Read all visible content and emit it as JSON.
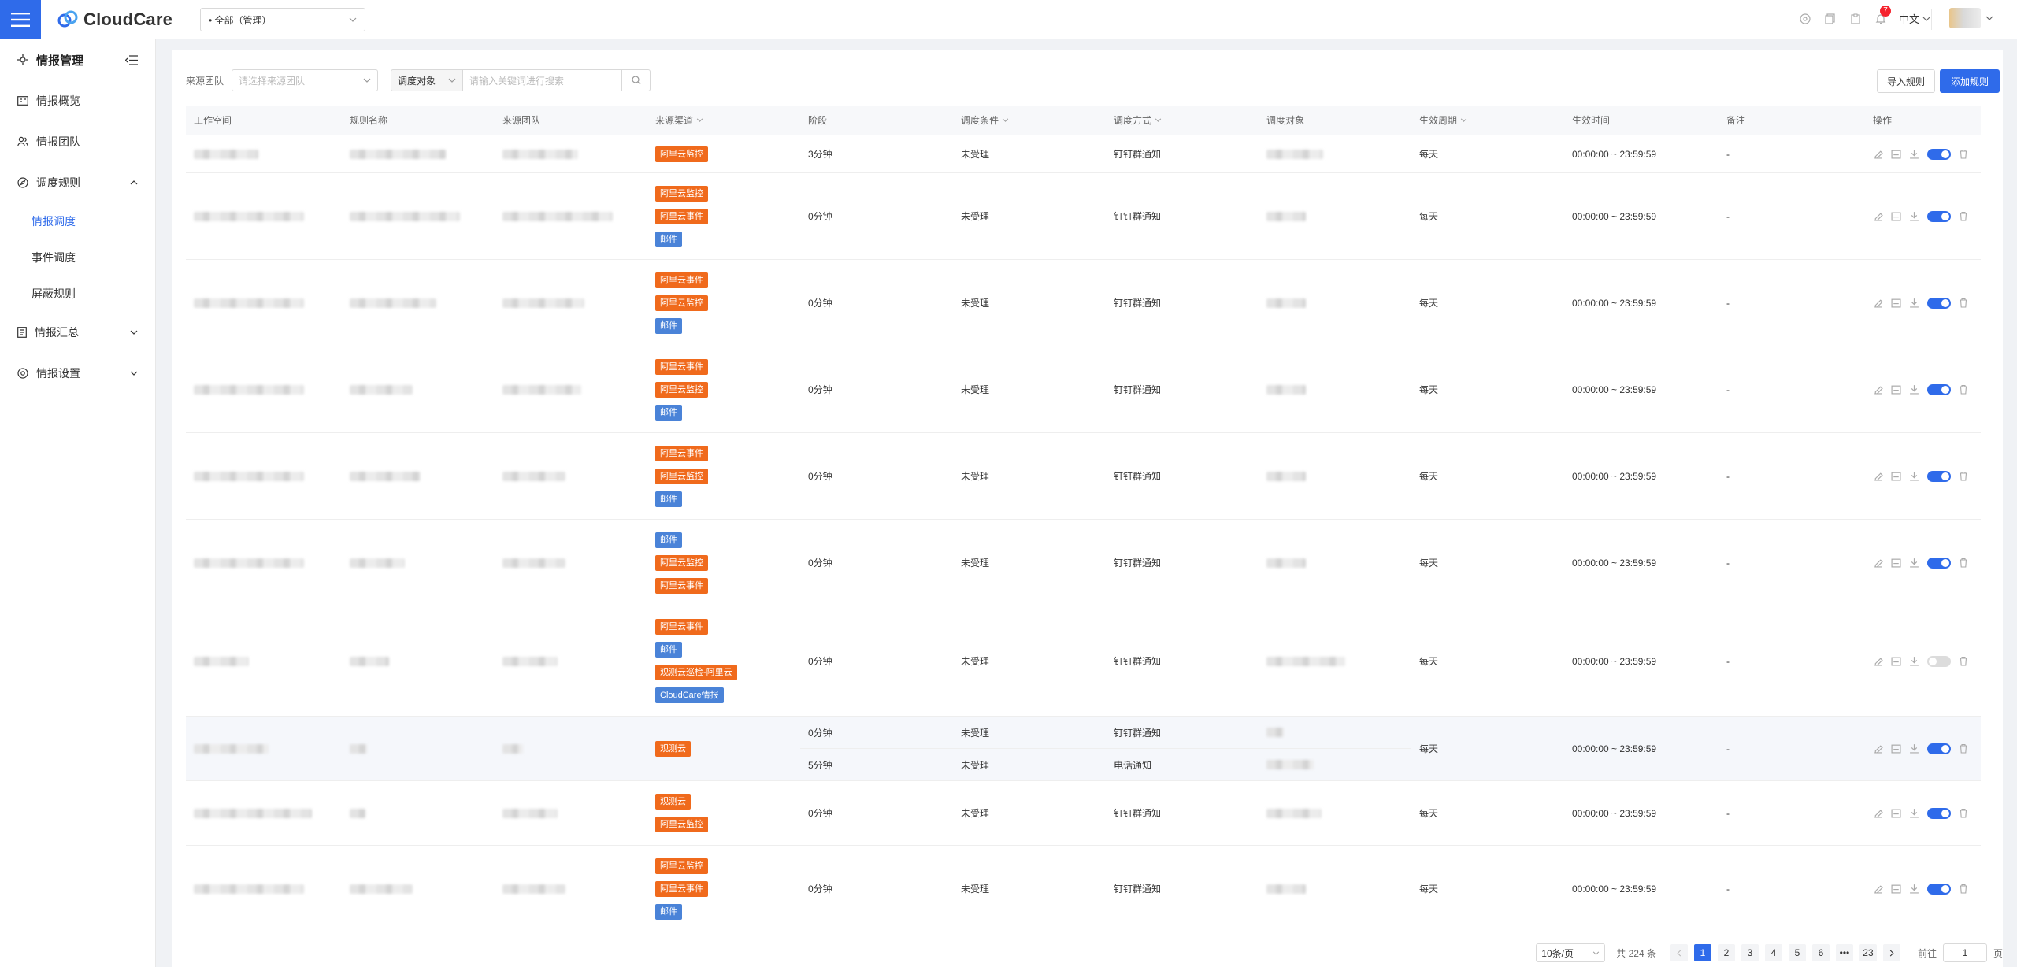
{
  "header": {
    "logo_text": "CloudCare",
    "workspace_select": "• 全部（管理）",
    "notification_count": "7",
    "language": "中文"
  },
  "sidebar": {
    "title": "情报管理",
    "items": [
      {
        "label": "情报概览",
        "icon": "overview-icon"
      },
      {
        "label": "情报团队",
        "icon": "team-icon"
      },
      {
        "label": "调度规则",
        "icon": "compass-icon"
      }
    ],
    "subitems": [
      "情报调度",
      "事件调度",
      "屏蔽规则"
    ],
    "items_after": [
      {
        "label": "情报汇总",
        "icon": "summary-icon"
      },
      {
        "label": "情报设置",
        "icon": "settings-icon"
      }
    ]
  },
  "filters": {
    "team_label": "来源团队",
    "team_placeholder": "请选择来源团队",
    "search_type": "调度对象",
    "search_placeholder": "请输入关键词进行搜索"
  },
  "actions": {
    "import": "导入规则",
    "add": "添加规则"
  },
  "table": {
    "columns": [
      "工作空间",
      "规则名称",
      "来源团队",
      "来源渠道",
      "阶段",
      "调度条件",
      "调度方式",
      "调度对象",
      "生效周期",
      "生效时间",
      "备注",
      "操作"
    ],
    "rows": [
      {
        "tags": [
          [
            "阿里云监控",
            "orange"
          ]
        ],
        "stage": [
          "3分钟"
        ],
        "cond": [
          "未受理"
        ],
        "method": [
          "钉钉群通知"
        ],
        "cycle": "每天",
        "time": "00:00:00 ~ 23:59:59",
        "note": "-",
        "enabled": true
      },
      {
        "tags": [
          [
            "阿里云监控",
            "orange"
          ],
          [
            "阿里云事件",
            "orange"
          ],
          [
            "邮件",
            "blue"
          ]
        ],
        "stage": [
          "0分钟"
        ],
        "cond": [
          "未受理"
        ],
        "method": [
          "钉钉群通知"
        ],
        "cycle": "每天",
        "time": "00:00:00 ~ 23:59:59",
        "note": "-",
        "enabled": true
      },
      {
        "tags": [
          [
            "阿里云事件",
            "orange"
          ],
          [
            "阿里云监控",
            "orange"
          ],
          [
            "邮件",
            "blue"
          ]
        ],
        "stage": [
          "0分钟"
        ],
        "cond": [
          "未受理"
        ],
        "method": [
          "钉钉群通知"
        ],
        "cycle": "每天",
        "time": "00:00:00 ~ 23:59:59",
        "note": "-",
        "enabled": true
      },
      {
        "tags": [
          [
            "阿里云事件",
            "orange"
          ],
          [
            "阿里云监控",
            "orange"
          ],
          [
            "邮件",
            "blue"
          ]
        ],
        "stage": [
          "0分钟"
        ],
        "cond": [
          "未受理"
        ],
        "method": [
          "钉钉群通知"
        ],
        "cycle": "每天",
        "time": "00:00:00 ~ 23:59:59",
        "note": "-",
        "enabled": true
      },
      {
        "tags": [
          [
            "阿里云事件",
            "orange"
          ],
          [
            "阿里云监控",
            "orange"
          ],
          [
            "邮件",
            "blue"
          ]
        ],
        "stage": [
          "0分钟"
        ],
        "cond": [
          "未受理"
        ],
        "method": [
          "钉钉群通知"
        ],
        "cycle": "每天",
        "time": "00:00:00 ~ 23:59:59",
        "note": "-",
        "enabled": true
      },
      {
        "tags": [
          [
            "邮件",
            "blue"
          ],
          [
            "阿里云监控",
            "orange"
          ],
          [
            "阿里云事件",
            "orange"
          ]
        ],
        "stage": [
          "0分钟"
        ],
        "cond": [
          "未受理"
        ],
        "method": [
          "钉钉群通知"
        ],
        "cycle": "每天",
        "time": "00:00:00 ~ 23:59:59",
        "note": "-",
        "enabled": true
      },
      {
        "tags": [
          [
            "阿里云事件",
            "orange"
          ],
          [
            "邮件",
            "blue"
          ],
          [
            "观测云巡检-阿里云",
            "orange"
          ],
          [
            "CloudCare情报",
            "blue"
          ]
        ],
        "stage": [
          "0分钟"
        ],
        "cond": [
          "未受理"
        ],
        "method": [
          "钉钉群通知"
        ],
        "cycle": "每天",
        "time": "00:00:00 ~ 23:59:59",
        "note": "-",
        "enabled": false
      },
      {
        "tags": [
          [
            "观测云",
            "orange"
          ]
        ],
        "stage": [
          "0分钟",
          "5分钟"
        ],
        "cond": [
          "未受理",
          "未受理"
        ],
        "method": [
          "钉钉群通知",
          "电话通知"
        ],
        "cycle": "每天",
        "time": "00:00:00 ~ 23:59:59",
        "note": "-",
        "enabled": true
      },
      {
        "tags": [
          [
            "观测云",
            "orange"
          ],
          [
            "阿里云监控",
            "orange"
          ]
        ],
        "stage": [
          "0分钟"
        ],
        "cond": [
          "未受理"
        ],
        "method": [
          "钉钉群通知"
        ],
        "cycle": "每天",
        "time": "00:00:00 ~ 23:59:59",
        "note": "-",
        "enabled": true
      },
      {
        "tags": [
          [
            "阿里云监控",
            "orange"
          ],
          [
            "阿里云事件",
            "orange"
          ],
          [
            "邮件",
            "blue"
          ]
        ],
        "stage": [
          "0分钟"
        ],
        "cond": [
          "未受理"
        ],
        "method": [
          "钉钉群通知"
        ],
        "cycle": "每天",
        "time": "00:00:00 ~ 23:59:59",
        "note": "-",
        "enabled": true
      }
    ]
  },
  "pagination": {
    "page_size": "10条/页",
    "total": "共 224 条",
    "pages": [
      "1",
      "2",
      "3",
      "4",
      "5",
      "6",
      "•••",
      "23"
    ],
    "current": "1",
    "goto_label": "前往",
    "goto_value": "1",
    "goto_suffix": "页"
  },
  "colors": {
    "primary": "#2f6bea",
    "tag_orange": "#f06a1c",
    "tag_blue": "#4a83d8"
  }
}
